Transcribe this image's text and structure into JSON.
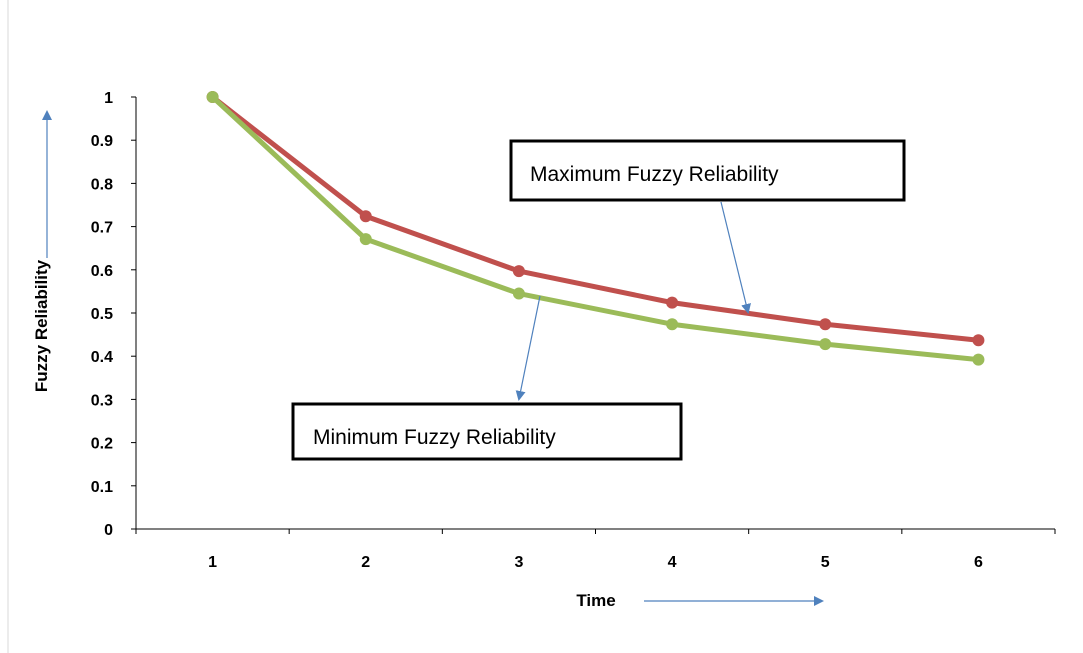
{
  "chart_data": {
    "type": "line",
    "xlabel": "Time",
    "ylabel": "Fuzzy Reliability",
    "categories": [
      "1",
      "2",
      "3",
      "4",
      "5",
      "6"
    ],
    "ylim": [
      0,
      1
    ],
    "yticks": [
      "0",
      "0.1",
      "0.2",
      "0.3",
      "0.4",
      "0.5",
      "0.6",
      "0.7",
      "0.8",
      "0.9",
      "1"
    ],
    "grid": false,
    "series": [
      {
        "name": "Maximum Fuzzy Reliability",
        "color": "#c0504d",
        "values": [
          1.0,
          0.724,
          0.597,
          0.524,
          0.474,
          0.437
        ]
      },
      {
        "name": "Minimum Fuzzy Reliability",
        "color": "#9bbb59",
        "values": [
          1.0,
          0.671,
          0.545,
          0.474,
          0.428,
          0.392
        ]
      }
    ],
    "arrow_color": "#4f81bd"
  }
}
